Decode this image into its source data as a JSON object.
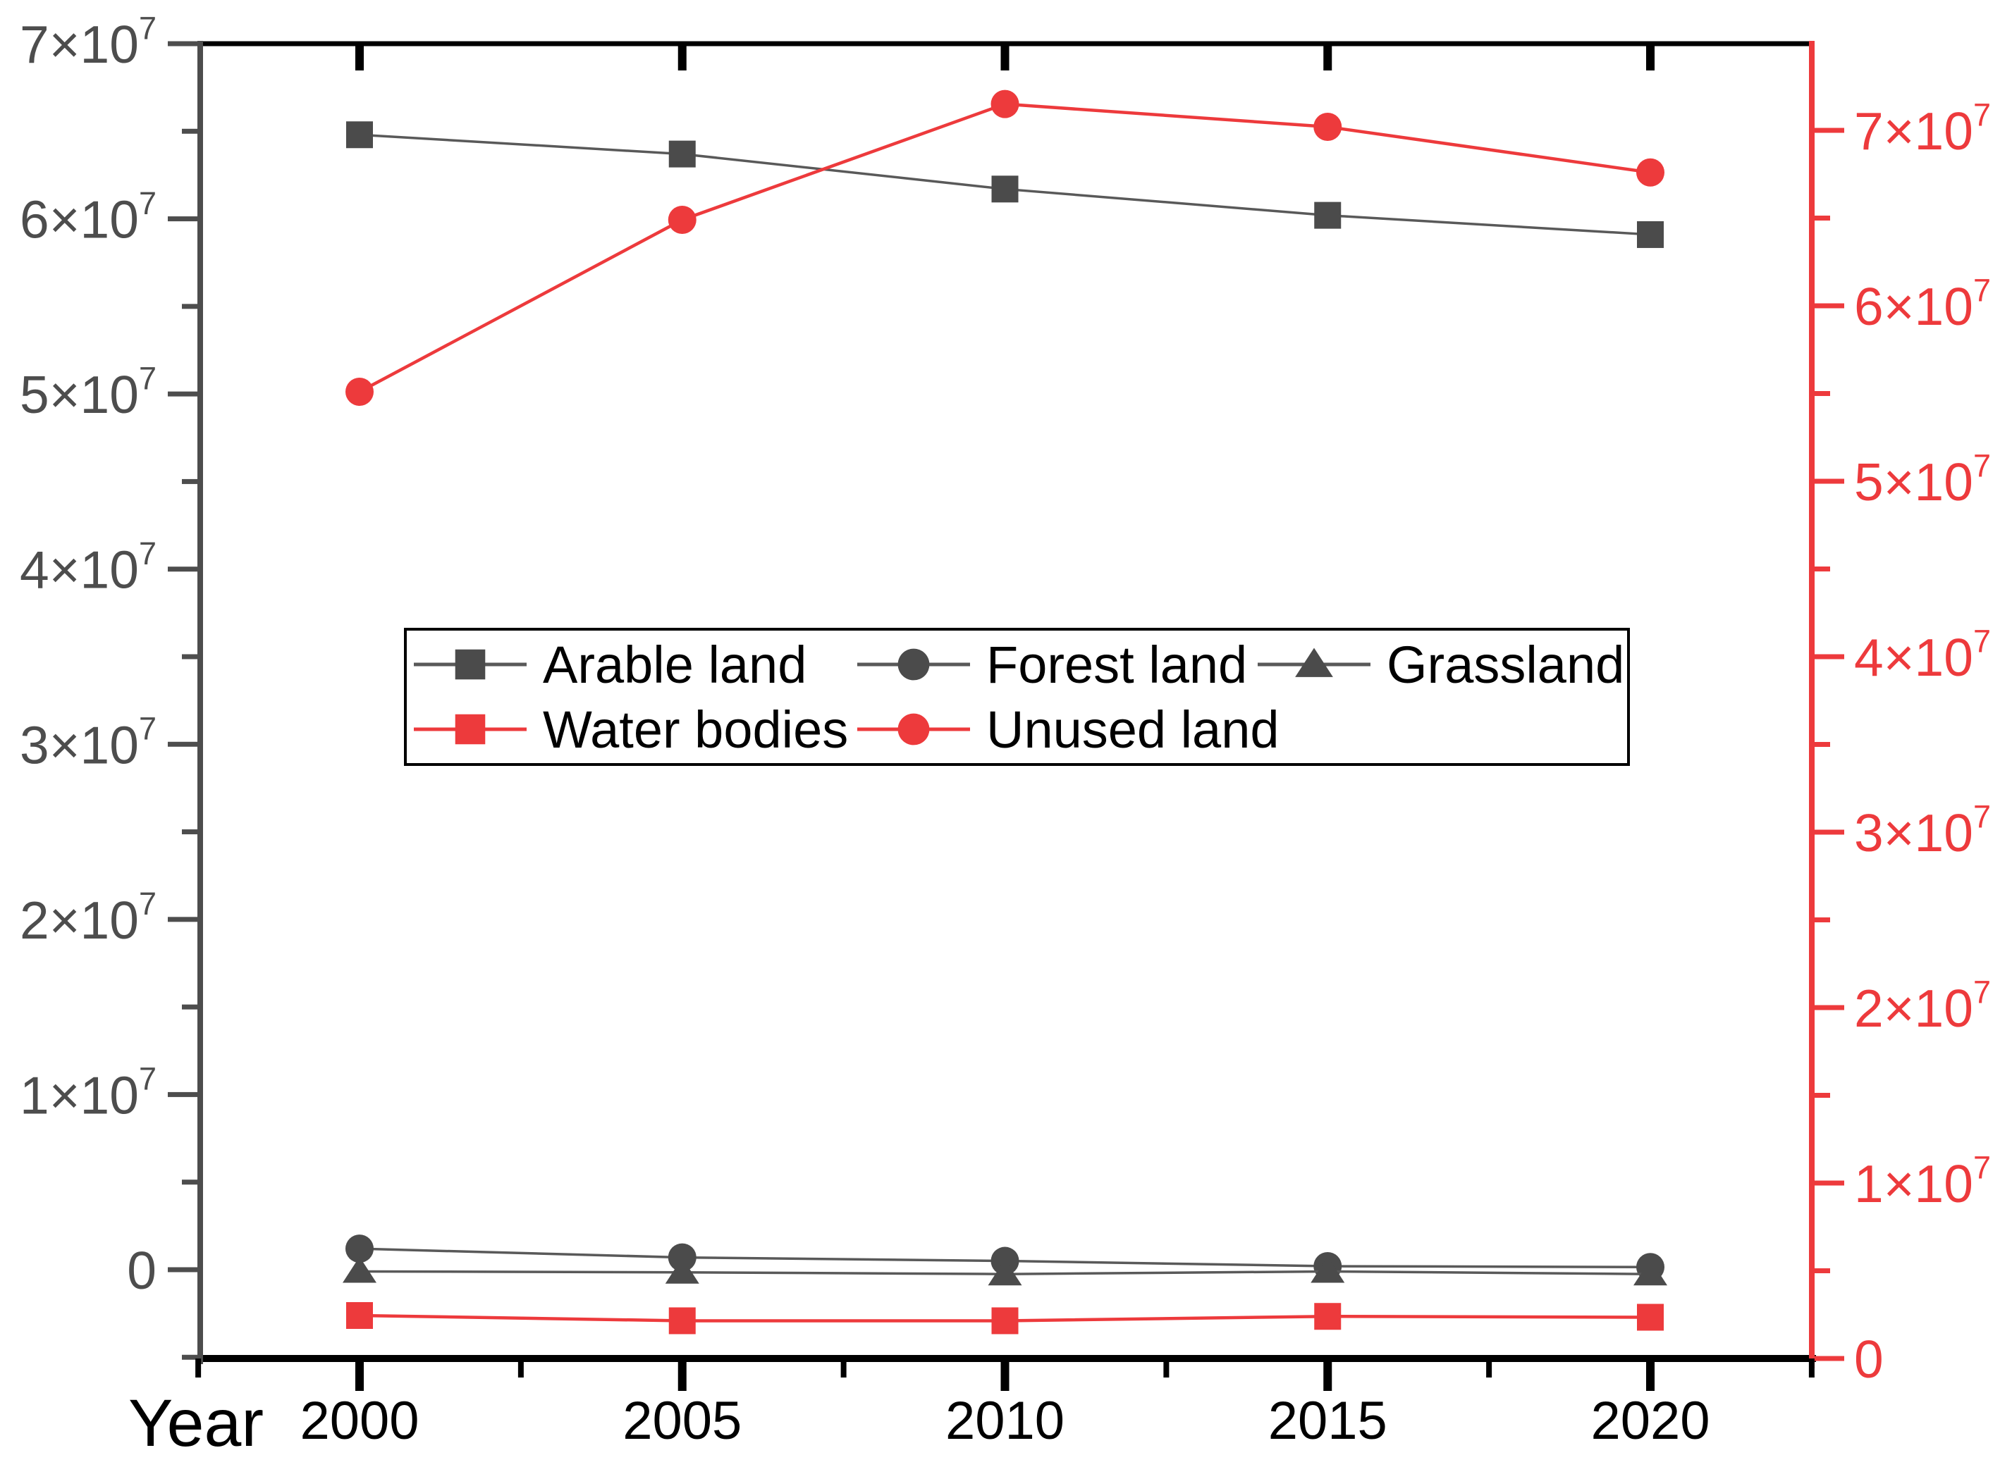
{
  "chart_data": {
    "type": "line",
    "title": "",
    "xlabel": "Year",
    "x_values": [
      2000,
      2005,
      2010,
      2015,
      2020
    ],
    "x_tick_labels": [
      "2000",
      "2005",
      "2010",
      "2015",
      "2020"
    ],
    "left_axis": {
      "color": "#4d4d4d",
      "tick_labels": [
        "0",
        "1×10^7",
        "2×10^7",
        "3×10^7",
        "4×10^7",
        "5×10^7",
        "6×10^7",
        "7×10^7"
      ],
      "tick_values": [
        0,
        10000000,
        20000000,
        30000000,
        40000000,
        50000000,
        60000000,
        70000000
      ],
      "min": -5070000,
      "max": 70000000,
      "grid": false
    },
    "right_axis": {
      "color": "#ed3a3c",
      "tick_labels": [
        "0",
        "1×10^7",
        "2×10^7",
        "3×10^7",
        "4×10^7",
        "5×10^7",
        "6×10^7",
        "7×10^7"
      ],
      "tick_values": [
        0,
        10000000,
        20000000,
        30000000,
        40000000,
        50000000,
        60000000,
        70000000
      ],
      "min": 0,
      "max": 74940000,
      "grid": false
    },
    "series": [
      {
        "name": "Arable land",
        "axis": "left",
        "marker": "square",
        "marker_color": "#4b4b4b",
        "line_color": "#595959",
        "values": [
          64800000,
          63700000,
          61700000,
          60200000,
          59100000
        ]
      },
      {
        "name": "Forest land",
        "axis": "left",
        "marker": "circle",
        "marker_color": "#4b4b4b",
        "line_color": "#595959",
        "values": [
          1200000,
          700000,
          500000,
          200000,
          150000
        ]
      },
      {
        "name": "Grassland",
        "axis": "left",
        "marker": "triangle",
        "marker_color": "#4b4b4b",
        "line_color": "#595959",
        "values": [
          -100000,
          -150000,
          -250000,
          -100000,
          -250000
        ]
      },
      {
        "name": "Water bodies",
        "axis": "right",
        "marker": "square",
        "marker_color": "#ed3a3c",
        "line_color": "#ed3a3c",
        "values": [
          2450000,
          2150000,
          2150000,
          2400000,
          2350000
        ]
      },
      {
        "name": "Unused land",
        "axis": "right",
        "marker": "circle",
        "marker_color": "#ed3a3c",
        "line_color": "#ed3a3c",
        "values": [
          55100000,
          64900000,
          71500000,
          70200000,
          67600000
        ]
      }
    ],
    "legend": {
      "position": "center",
      "rows": [
        [
          "Arable land",
          "Forest land",
          "Grassland"
        ],
        [
          "Water bodies",
          "Unused land"
        ]
      ]
    }
  },
  "colors": {
    "background": "#ffffff",
    "frame_black": "#000000",
    "axis_gray": "#4d4d4d",
    "axis_red": "#ed3a3c",
    "year_label": "#000000"
  }
}
